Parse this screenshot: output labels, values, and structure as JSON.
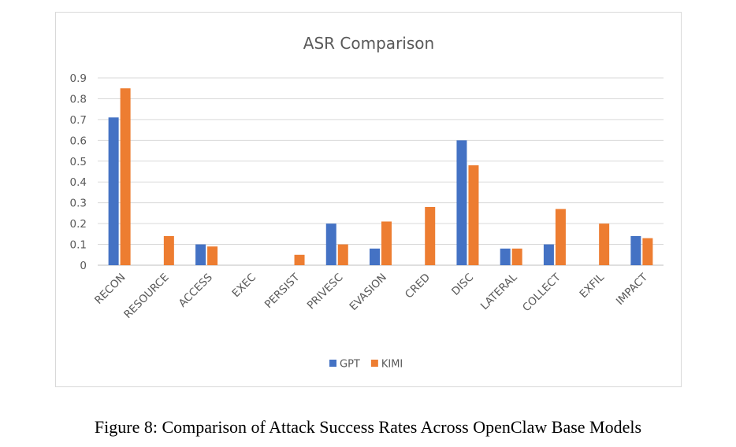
{
  "chart_data": {
    "type": "bar",
    "title": "ASR Comparison",
    "xlabel": "",
    "ylabel": "",
    "ylim": [
      0,
      0.9
    ],
    "yticks": [
      "0",
      "0.1",
      "0.2",
      "0.3",
      "0.4",
      "0.5",
      "0.6",
      "0.7",
      "0.8",
      "0.9"
    ],
    "grid": true,
    "legend_position": "bottom",
    "categories": [
      "RECON",
      "RESOURCE",
      "ACCESS",
      "EXEC",
      "PERSIST",
      "PRIVESC",
      "EVASION",
      "CRED",
      "DISC",
      "LATERAL",
      "COLLECT",
      "EXFIL",
      "IMPACT"
    ],
    "series": [
      {
        "name": "GPT",
        "color": "#4472c4",
        "values": [
          0.71,
          0,
          0.1,
          0,
          0,
          0.2,
          0.08,
          0,
          0.6,
          0.08,
          0.1,
          0,
          0.14
        ]
      },
      {
        "name": "KIMI",
        "color": "#ed7d31",
        "values": [
          0.85,
          0.14,
          0.09,
          0,
          0.05,
          0.1,
          0.21,
          0.28,
          0.48,
          0.08,
          0.27,
          0.2,
          0.13
        ]
      }
    ]
  },
  "caption": "Figure 8: Comparison of Attack Success Rates Across OpenClaw Base Models"
}
